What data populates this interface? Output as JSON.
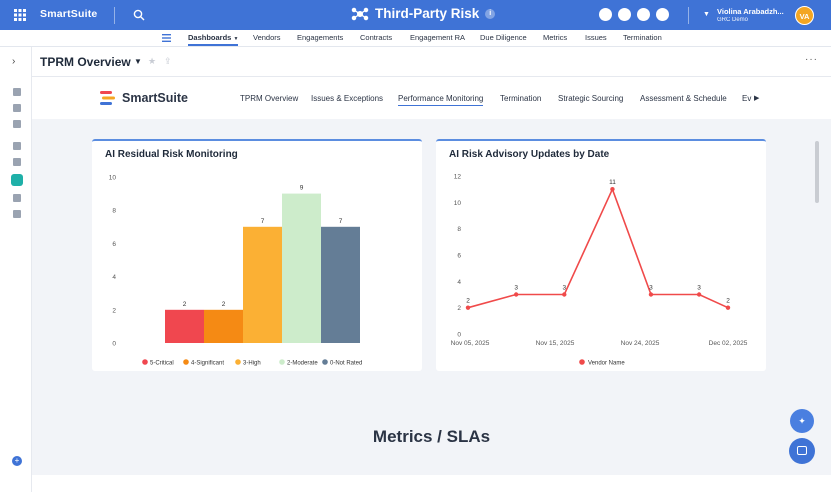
{
  "topbar": {
    "brand": "SmartSuite",
    "app_title": "Third-Party Risk",
    "info_glyph": "i",
    "user_name": "Violina Arabadzh...",
    "user_org": "GRC Demo",
    "avatar_initials": "VA",
    "icons": [
      "apps-grid-icon",
      "search-icon",
      "hub-icon",
      "smiley-icon",
      "star-icon",
      "check-icon",
      "bell-icon"
    ],
    "color": "#3f73d6"
  },
  "nav": {
    "items": [
      "Dashboards",
      "Vendors",
      "Engagements",
      "Contracts",
      "Engagement RA",
      "Due Diligence",
      "Metrics",
      "Issues",
      "Termination"
    ],
    "active": "Dashboards"
  },
  "header": {
    "title": "TPRM Overview"
  },
  "dashboard_tabs": {
    "logo_text": "SmartSuite",
    "items": [
      "TPRM Overview",
      "Issues & Exceptions",
      "Performance Monitoring",
      "Termination",
      "Strategic Sourcing",
      "Assessment & Schedule",
      "Ev"
    ],
    "active": "Performance Monitoring"
  },
  "chart_data": [
    {
      "type": "bar",
      "title": "AI Residual Risk Monitoring",
      "categories": [
        "5-Critical",
        "4-Significant",
        "3-High",
        "2-Moderate",
        "0-Not Rated"
      ],
      "values": [
        2,
        2,
        7,
        9,
        7
      ],
      "colors": [
        "#f0474f",
        "#f58a14",
        "#fbb034",
        "#cdeccb",
        "#647d96"
      ],
      "yticks": [
        "0",
        "2",
        "4",
        "6",
        "8",
        "10"
      ],
      "ylim": [
        0,
        10
      ],
      "legend": "bottom",
      "grid": false
    },
    {
      "type": "line",
      "title": "AI Risk Advisory Updates by Date",
      "xticks": [
        "Nov 05, 2025",
        "Nov 15, 2025",
        "Nov 24, 2025",
        "Dec 02, 2025"
      ],
      "yticks": [
        "0",
        "2",
        "4",
        "6",
        "8",
        "10",
        "12"
      ],
      "ylim": [
        0,
        12
      ],
      "series": [
        {
          "name": "Vendor Name",
          "color": "#f04a4a",
          "x": [
            "2025-11-05",
            "2025-11-10",
            "2025-11-15",
            "2025-11-20",
            "2025-11-24",
            "2025-11-29",
            "2025-12-02"
          ],
          "values": [
            2,
            3,
            3,
            11,
            3,
            3,
            2
          ]
        }
      ],
      "legend": "bottom",
      "grid": false
    }
  ],
  "section_title": "Metrics / SLAs"
}
